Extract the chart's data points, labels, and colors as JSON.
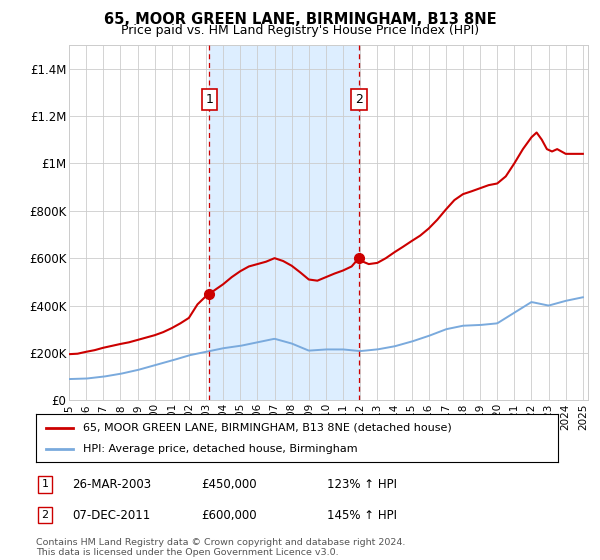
{
  "title": "65, MOOR GREEN LANE, BIRMINGHAM, B13 8NE",
  "subtitle": "Price paid vs. HM Land Registry's House Price Index (HPI)",
  "legend_line1": "65, MOOR GREEN LANE, BIRMINGHAM, B13 8NE (detached house)",
  "legend_line2": "HPI: Average price, detached house, Birmingham",
  "annotation1_label": "1",
  "annotation1_date": "26-MAR-2003",
  "annotation1_price": "£450,000",
  "annotation1_hpi": "123% ↑ HPI",
  "annotation1_year": 2003.2,
  "annotation1_value": 450000,
  "annotation2_label": "2",
  "annotation2_date": "07-DEC-2011",
  "annotation2_price": "£600,000",
  "annotation2_hpi": "145% ↑ HPI",
  "annotation2_year": 2011.92,
  "annotation2_value": 600000,
  "red_color": "#cc0000",
  "blue_color": "#7aaadd",
  "background_color": "#ffffff",
  "plot_bg_color": "#ffffff",
  "shade_color": "#ddeeff",
  "grid_color": "#cccccc",
  "footer_text": "Contains HM Land Registry data © Crown copyright and database right 2024.\nThis data is licensed under the Open Government Licence v3.0.",
  "ylim": [
    0,
    1500000
  ],
  "yticks": [
    0,
    200000,
    400000,
    600000,
    800000,
    1000000,
    1200000,
    1400000
  ],
  "ytick_labels": [
    "£0",
    "£200K",
    "£400K",
    "£600K",
    "£800K",
    "£1M",
    "£1.2M",
    "£1.4M"
  ],
  "years_hpi": [
    1995,
    1996,
    1997,
    1998,
    1999,
    2000,
    2001,
    2002,
    2003,
    2004,
    2005,
    2006,
    2007,
    2008,
    2009,
    2010,
    2011,
    2012,
    2013,
    2014,
    2015,
    2016,
    2017,
    2018,
    2019,
    2020,
    2021,
    2022,
    2023,
    2024,
    2025
  ],
  "hpi_values": [
    90000,
    92000,
    100000,
    112000,
    128000,
    148000,
    168000,
    190000,
    205000,
    220000,
    230000,
    245000,
    260000,
    240000,
    210000,
    215000,
    215000,
    208000,
    215000,
    228000,
    248000,
    272000,
    300000,
    315000,
    318000,
    325000,
    370000,
    415000,
    400000,
    420000,
    435000
  ],
  "years_red": [
    1995.0,
    1995.5,
    1996.0,
    1996.5,
    1997.0,
    1997.5,
    1998.0,
    1998.5,
    1999.0,
    1999.5,
    2000.0,
    2000.5,
    2001.0,
    2001.5,
    2002.0,
    2002.5,
    2003.0,
    2003.2,
    2003.5,
    2004.0,
    2004.5,
    2005.0,
    2005.5,
    2006.0,
    2006.5,
    2007.0,
    2007.5,
    2008.0,
    2008.5,
    2009.0,
    2009.5,
    2010.0,
    2010.5,
    2011.0,
    2011.5,
    2011.92,
    2012.0,
    2012.5,
    2013.0,
    2013.5,
    2014.0,
    2014.5,
    2015.0,
    2015.5,
    2016.0,
    2016.5,
    2017.0,
    2017.5,
    2018.0,
    2018.5,
    2019.0,
    2019.5,
    2020.0,
    2020.5,
    2021.0,
    2021.5,
    2022.0,
    2022.3,
    2022.6,
    2022.9,
    2023.2,
    2023.5,
    2024.0,
    2024.5,
    2025.0
  ],
  "red_values": [
    195000,
    197000,
    205000,
    212000,
    222000,
    230000,
    238000,
    245000,
    255000,
    265000,
    275000,
    288000,
    305000,
    325000,
    348000,
    405000,
    440000,
    450000,
    465000,
    490000,
    520000,
    545000,
    565000,
    575000,
    585000,
    600000,
    588000,
    568000,
    540000,
    510000,
    505000,
    520000,
    535000,
    548000,
    565000,
    600000,
    590000,
    575000,
    580000,
    600000,
    625000,
    648000,
    672000,
    695000,
    725000,
    762000,
    805000,
    845000,
    870000,
    882000,
    895000,
    908000,
    915000,
    945000,
    1000000,
    1060000,
    1110000,
    1130000,
    1100000,
    1060000,
    1050000,
    1060000,
    1040000,
    1040000,
    1040000
  ]
}
